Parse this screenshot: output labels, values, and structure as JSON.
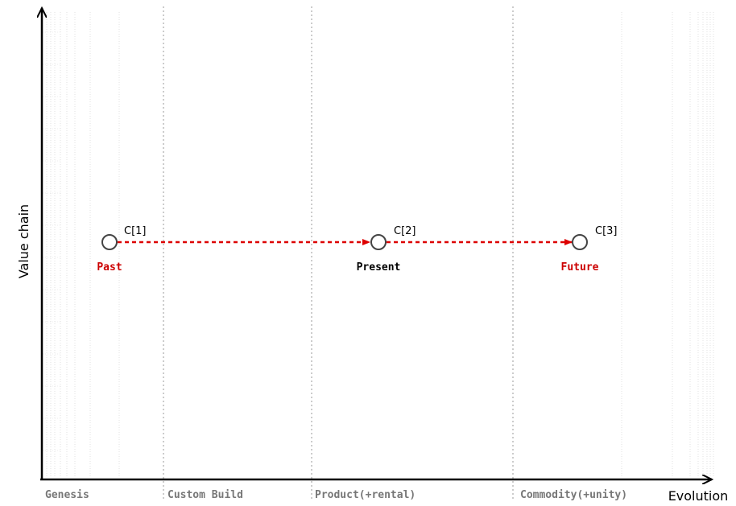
{
  "axes": {
    "y_label": "Value chain",
    "x_label": "Evolution"
  },
  "stages": [
    {
      "label": "Genesis"
    },
    {
      "label": "Custom Build"
    },
    {
      "label": "Product(+rental)"
    },
    {
      "label": "Commodity(+unity)"
    }
  ],
  "components": [
    {
      "name": "C[1]",
      "tag": "Past",
      "tag_color": "#cc0000"
    },
    {
      "name": "C[2]",
      "tag": "Present",
      "tag_color": "#000000"
    },
    {
      "name": "C[3]",
      "tag": "Future",
      "tag_color": "#cc0000"
    }
  ],
  "colors": {
    "arrow": "#dd0000",
    "node_stroke": "#444444",
    "axis": "#000000",
    "grid": "#bbbbbb",
    "stage_label": "#777777"
  }
}
